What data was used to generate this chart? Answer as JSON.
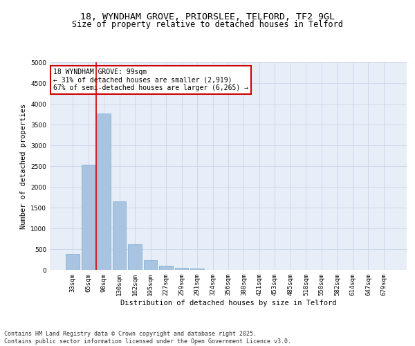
{
  "title_line1": "18, WYNDHAM GROVE, PRIORSLEE, TELFORD, TF2 9GL",
  "title_line2": "Size of property relative to detached houses in Telford",
  "xlabel": "Distribution of detached houses by size in Telford",
  "ylabel": "Number of detached properties",
  "categories": [
    "33sqm",
    "65sqm",
    "98sqm",
    "130sqm",
    "162sqm",
    "195sqm",
    "227sqm",
    "259sqm",
    "291sqm",
    "324sqm",
    "356sqm",
    "388sqm",
    "421sqm",
    "453sqm",
    "485sqm",
    "518sqm",
    "550sqm",
    "582sqm",
    "614sqm",
    "647sqm",
    "679sqm"
  ],
  "values": [
    380,
    2530,
    3770,
    1650,
    620,
    230,
    100,
    50,
    30,
    0,
    0,
    0,
    0,
    0,
    0,
    0,
    0,
    0,
    0,
    0,
    0
  ],
  "bar_color": "#a8c4e0",
  "bar_edge_color": "#7aabcf",
  "vline_color": "#cc0000",
  "vline_x_idx": 2,
  "annotation_box_text": "18 WYNDHAM GROVE: 99sqm\n← 31% of detached houses are smaller (2,919)\n67% of semi-detached houses are larger (6,265) →",
  "annotation_box_color": "#cc0000",
  "annotation_box_bg": "#ffffff",
  "ylim": [
    0,
    5000
  ],
  "yticks": [
    0,
    500,
    1000,
    1500,
    2000,
    2500,
    3000,
    3500,
    4000,
    4500,
    5000
  ],
  "grid_color": "#c8d4e8",
  "bg_color": "#e8eef8",
  "footer_line1": "Contains HM Land Registry data © Crown copyright and database right 2025.",
  "footer_line2": "Contains public sector information licensed under the Open Government Licence v3.0.",
  "title_fontsize": 9.5,
  "subtitle_fontsize": 8.5,
  "axis_label_fontsize": 7.5,
  "tick_fontsize": 6.5,
  "footer_fontsize": 6,
  "annotation_fontsize": 7
}
